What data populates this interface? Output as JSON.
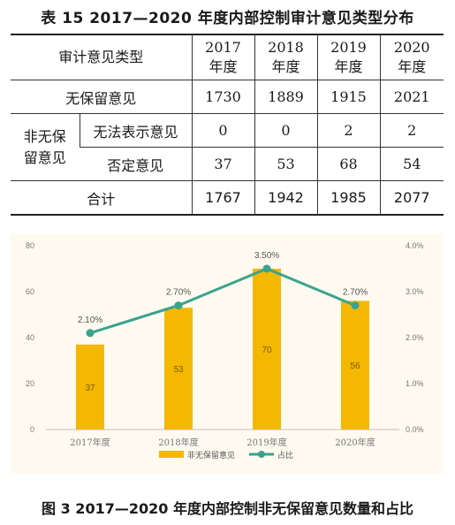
{
  "table": {
    "title": "表 15  2017—2020 年度内部控制审计意见类型分布",
    "header": {
      "type_label": "审计意见类型",
      "years": [
        {
          "year": "2017",
          "suffix": "年度"
        },
        {
          "year": "2018",
          "suffix": "年度"
        },
        {
          "year": "2019",
          "suffix": "年度"
        },
        {
          "year": "2020",
          "suffix": "年度"
        }
      ]
    },
    "unqualified": {
      "label": "无保留意见",
      "values": [
        "1730",
        "1889",
        "1915",
        "2021"
      ]
    },
    "non_unqualified_group": "非无保留意见",
    "disclaimer": {
      "label": "无法表示意见",
      "values": [
        "0",
        "0",
        "2",
        "2"
      ]
    },
    "adverse": {
      "label": "否定意见",
      "values": [
        "37",
        "53",
        "68",
        "54"
      ]
    },
    "total": {
      "label": "合计",
      "values": [
        "1767",
        "1942",
        "1985",
        "2077"
      ]
    }
  },
  "chart_data": {
    "type": "bar",
    "categories": [
      "2017年度",
      "2018年度",
      "2019年度",
      "2020年度"
    ],
    "series": [
      {
        "name": "非无保留意见",
        "type": "bar",
        "values": [
          37,
          53,
          70,
          56
        ],
        "labels": [
          "37",
          "53",
          "70",
          "56"
        ],
        "color": "#f5b800"
      },
      {
        "name": "占比",
        "type": "line",
        "values": [
          2.1,
          2.7,
          3.5,
          2.7
        ],
        "labels": [
          "2.10%",
          "2.70%",
          "3.50%",
          "2.70%"
        ],
        "color": "#3aa38f"
      }
    ],
    "ylim": [
      0,
      80
    ],
    "yticks": [
      "0",
      "20",
      "40",
      "60",
      "80"
    ],
    "y2lim": [
      0,
      4.0
    ],
    "y2ticks": [
      "0.0%",
      "1.0%",
      "2.0%",
      "3.0%",
      "4.0%"
    ],
    "grid": false,
    "legend": "bottom"
  },
  "figure": {
    "title": "图 3  2017—2020 年度内部控制非无保留意见数量和占比"
  }
}
